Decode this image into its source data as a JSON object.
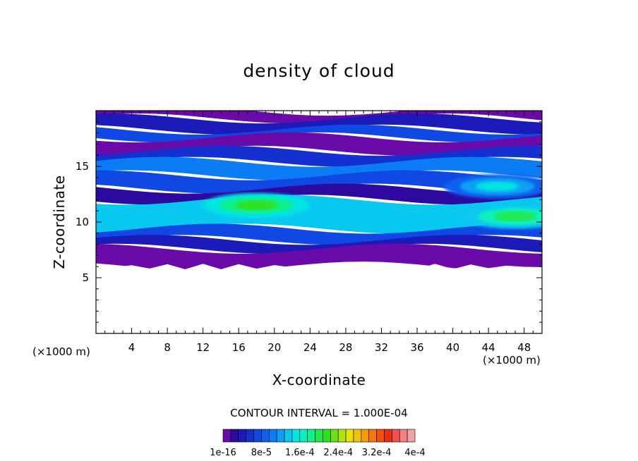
{
  "chart_data": {
    "type": "heatmap",
    "title": "density of cloud",
    "xlabel": "X-coordinate",
    "ylabel": "Z-coordinate",
    "x_unit": "(×1000 m)",
    "y_unit": "",
    "xlim": [
      0,
      50
    ],
    "ylim": [
      0,
      20
    ],
    "x_ticks": [
      4,
      8,
      12,
      16,
      20,
      24,
      28,
      32,
      36,
      40,
      44,
      48
    ],
    "y_ticks": [
      5,
      10,
      15
    ],
    "contour_interval_label": "CONTOUR INTERVAL = 1.000E-04",
    "colorbar": {
      "labels": [
        "1e-16",
        "8e-5",
        "1.6e-4",
        "2.4e-4",
        "3.2e-4",
        "4e-4"
      ],
      "colors": [
        "#6a0aa8",
        "#2c0aa0",
        "#1c1ab8",
        "#1430d0",
        "#1048e4",
        "#1060f0",
        "#0c7cf4",
        "#08a0f4",
        "#08c8f0",
        "#06e4e4",
        "#08f0c0",
        "#10f08c",
        "#20e850",
        "#30e020",
        "#70e010",
        "#b0e410",
        "#e4e40c",
        "#f4c00c",
        "#f49c0c",
        "#f4780c",
        "#f0500c",
        "#e8300c",
        "#f05050",
        "#f48080",
        "#f4a0a0"
      ]
    },
    "x_samples_km": [
      0,
      2,
      4,
      6,
      8,
      10,
      12,
      14,
      16,
      18,
      20,
      22,
      24,
      26,
      28,
      30,
      32,
      34,
      36,
      38,
      40,
      42,
      44,
      46,
      48,
      50
    ],
    "cloud_base_km": [
      6.0,
      6.0,
      6.0,
      6.0,
      6.0,
      6.0,
      6.0,
      6.0,
      6.0,
      6.0,
      6.0,
      6.0,
      6.0,
      6.0,
      6.0,
      6.0,
      6.0,
      6.0,
      6.0,
      6.0,
      6.0,
      6.0,
      6.0,
      6.0,
      6.0,
      6.0
    ],
    "cloud_top_km": [
      20,
      20,
      20,
      20,
      20,
      20,
      20,
      20,
      20,
      20,
      20,
      20,
      20,
      20,
      20,
      20,
      20,
      20,
      20,
      20,
      20,
      20,
      20,
      20,
      20,
      20
    ],
    "bands": [
      {
        "z": [
          19.3,
          20
        ],
        "level": 0
      },
      {
        "z": [
          18.3,
          19.3
        ],
        "level": 2
      },
      {
        "z": [
          17.6,
          18.3
        ],
        "level": 4
      },
      {
        "z": [
          16.4,
          17.6
        ],
        "level": 0
      },
      {
        "z": [
          15.4,
          16.4
        ],
        "level": 3
      },
      {
        "z": [
          14.2,
          15.4
        ],
        "level": 6
      },
      {
        "z": [
          13.0,
          14.2
        ],
        "level": 4
      },
      {
        "z": [
          12.0,
          13.0
        ],
        "level": 1
      },
      {
        "z": [
          9.4,
          12.0
        ],
        "level": 8
      },
      {
        "z": [
          8.4,
          9.4
        ],
        "level": 4
      },
      {
        "z": [
          7.6,
          8.4
        ],
        "level": 2
      },
      {
        "z": [
          6.0,
          7.6
        ],
        "level": 0
      }
    ],
    "maxima": [
      {
        "x": 18,
        "z": 11.5,
        "level": 13
      },
      {
        "x": 47,
        "z": 10.5,
        "level": 12
      },
      {
        "x": 45,
        "z": 13.2,
        "level": 9
      }
    ]
  }
}
